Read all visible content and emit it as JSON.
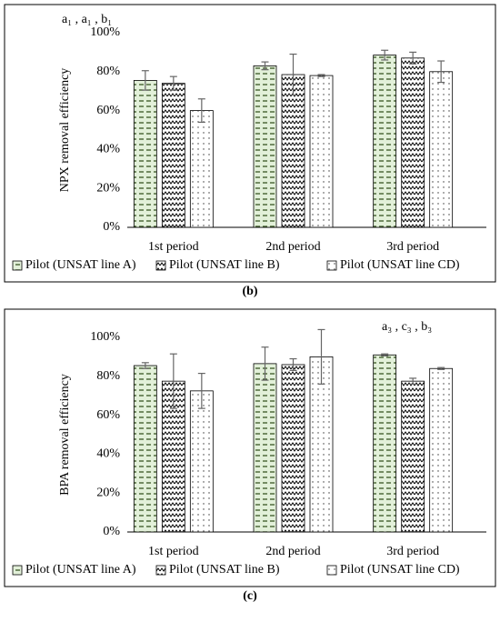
{
  "chart_data": [
    {
      "type": "bar",
      "annotation": "a₁ , a₁ , b₁",
      "caption": "(b)",
      "ylabel": "NPX removal efficiency",
      "categories": [
        "1st period",
        "2nd period",
        "3rd period"
      ],
      "series": [
        {
          "name": "Pilot (UNSAT line A)",
          "color": "#e2f0d9",
          "values": [
            75.5,
            83,
            88.5
          ],
          "errors": [
            5,
            2,
            2.5
          ]
        },
        {
          "name": "Pilot (UNSAT line B)",
          "color": "#ffffff",
          "values": [
            74,
            78.5,
            87
          ],
          "errors": [
            3.5,
            10.5,
            3
          ]
        },
        {
          "name": "Pilot (UNSAT line CD)",
          "color": "#ffffff",
          "values": [
            60,
            78,
            80
          ],
          "errors": [
            6,
            0.5,
            5.5
          ]
        }
      ],
      "ylim": [
        0,
        100
      ],
      "yticks": [
        {
          "value": 0,
          "label": "0%"
        },
        {
          "value": 20,
          "label": "20%"
        },
        {
          "value": 40,
          "label": "40%"
        },
        {
          "value": 60,
          "label": "60%"
        },
        {
          "value": 80,
          "label": "80%"
        },
        {
          "value": 100,
          "label": "100%"
        }
      ],
      "grid": false
    },
    {
      "type": "bar",
      "annotation": "a₃ , c₃ , b₃",
      "caption": "(c)",
      "ylabel": "BPA removal efficiency",
      "categories": [
        "1st period",
        "2nd period",
        "3rd period"
      ],
      "series": [
        {
          "name": "Pilot (UNSAT line A)",
          "color": "#e2f0d9",
          "values": [
            85.5,
            86.5,
            91
          ],
          "errors": [
            1.5,
            8.5,
            0.5
          ]
        },
        {
          "name": "Pilot (UNSAT line B)",
          "color": "#ffffff",
          "values": [
            77.5,
            86,
            77.5
          ],
          "errors": [
            14,
            3,
            1.5
          ]
        },
        {
          "name": "Pilot (UNSAT line CD)",
          "color": "#ffffff",
          "values": [
            72.5,
            90,
            84
          ],
          "errors": [
            9,
            14,
            0.5
          ]
        }
      ],
      "ylim": [
        0,
        100
      ],
      "yticks": [
        {
          "value": 0,
          "label": "0%"
        },
        {
          "value": 20,
          "label": "20%"
        },
        {
          "value": 40,
          "label": "40%"
        },
        {
          "value": 60,
          "label": "60%"
        },
        {
          "value": 80,
          "label": "80%"
        },
        {
          "value": 100,
          "label": "100%"
        }
      ],
      "grid": false
    }
  ]
}
